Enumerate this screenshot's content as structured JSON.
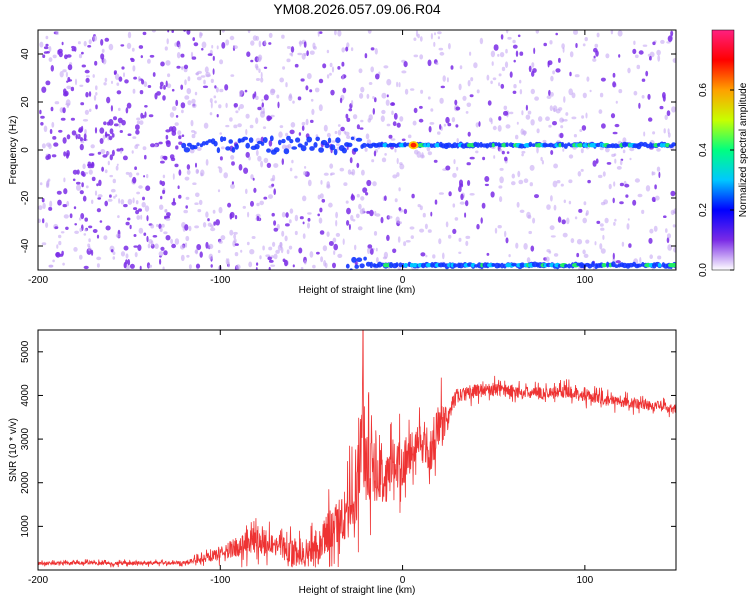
{
  "title": "YM08.2026.057.09.06.R04",
  "colors": {
    "snr_line": "#ee3333",
    "ridge_core": "#22ee66",
    "ridge_mid": "#1133ff",
    "speckle": "#7a2be6",
    "speckle_light": "#c7a9f3",
    "frame": "#000000"
  },
  "chart_data": [
    {
      "type": "heatmap",
      "name": "spectrogram",
      "xlabel": "Height of straight line (km)",
      "ylabel": "Frequency (Hz)",
      "xlim": [
        -200,
        150
      ],
      "ylim": [
        -50,
        50
      ],
      "xticks": [
        "-200",
        "-100",
        "0",
        "100"
      ],
      "yticks": [
        "-40",
        "-20",
        "0",
        "20",
        "40"
      ],
      "colorbar": {
        "label": "Normalized spectral amplitude",
        "range": [
          0.0,
          0.8
        ],
        "ticks": [
          "0.0",
          "0.2",
          "0.4",
          "0.6"
        ],
        "gradient": [
          "#ffffff",
          "#7a2be6",
          "#0000ff",
          "#00c8ff",
          "#00ff80",
          "#c8ff00",
          "#ffa000",
          "#ff0000",
          "#ff2080"
        ]
      },
      "features": [
        {
          "label": "signal ridge",
          "frequency_hz": 2,
          "x_from": -120,
          "x_to": 150
        },
        {
          "label": "lower band",
          "frequency_hz": -48,
          "x_from": -30,
          "x_to": 150
        },
        {
          "label": "peak",
          "x": 6,
          "frequency_hz": 2,
          "amplitude": 0.8
        }
      ]
    },
    {
      "type": "line",
      "name": "snr",
      "xlabel": "Height of straight line (km)",
      "ylabel": "SNR (10 * v/v)",
      "xlim": [
        -200,
        150
      ],
      "ylim": [
        0,
        5500
      ],
      "xticks": [
        "-200",
        "-100",
        "0",
        "100"
      ],
      "yticks": [
        "1000",
        "2000",
        "3000",
        "4000",
        "5000"
      ],
      "series": [
        {
          "name": "SNR",
          "x": [
            -200,
            -180,
            -160,
            -140,
            -120,
            -110,
            -100,
            -90,
            -80,
            -70,
            -60,
            -50,
            -40,
            -30,
            -25,
            -22,
            -20,
            -15,
            -10,
            -5,
            0,
            5,
            10,
            15,
            20,
            22,
            25,
            30,
            40,
            50,
            60,
            70,
            80,
            90,
            100,
            110,
            120,
            130,
            140,
            150
          ],
          "values": [
            150,
            160,
            150,
            160,
            170,
            250,
            380,
            550,
            700,
            600,
            400,
            450,
            900,
            1300,
            2000,
            3600,
            2400,
            2300,
            2100,
            2400,
            2500,
            2700,
            3000,
            2600,
            3300,
            3400,
            3600,
            4000,
            4100,
            4150,
            4100,
            4050,
            4050,
            4100,
            4000,
            3900,
            3850,
            3800,
            3750,
            3700
          ],
          "noise": [
            60,
            60,
            60,
            60,
            60,
            120,
            200,
            350,
            450,
            400,
            400,
            500,
            700,
            900,
            1400,
            2000,
            1300,
            1000,
            900,
            800,
            800,
            700,
            500,
            600,
            800,
            700,
            350,
            220,
            220,
            220,
            220,
            200,
            200,
            200,
            200,
            180,
            180,
            180,
            180,
            180
          ]
        }
      ]
    }
  ]
}
